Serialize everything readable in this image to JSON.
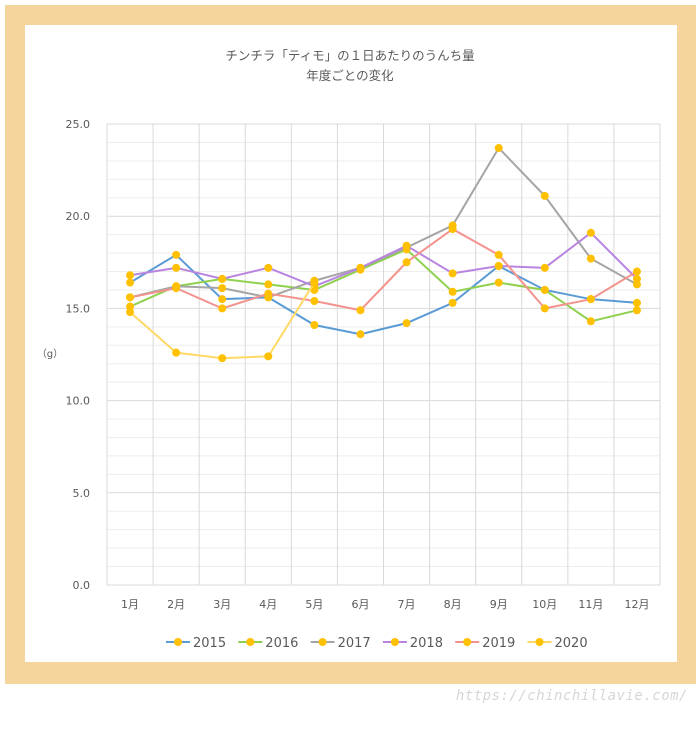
{
  "chart_data": {
    "type": "line",
    "title": "チンチラ「ティモ」の１日あたりのうんち量",
    "subtitle": "年度ごとの変化",
    "ylabel": "（g）",
    "xlabel": "",
    "categories": [
      "1月",
      "2月",
      "3月",
      "4月",
      "5月",
      "6月",
      "7月",
      "8月",
      "9月",
      "10月",
      "11月",
      "12月"
    ],
    "ylim": [
      0,
      25
    ],
    "yticks": [
      "0.0",
      "5.0",
      "10.0",
      "15.0",
      "20.0",
      "25.0"
    ],
    "grid": true,
    "legend": "bottom",
    "marker_color": "#ffc000",
    "series": [
      {
        "name": "2015",
        "color": "#5b9bd5",
        "values": [
          16.4,
          17.9,
          15.5,
          15.6,
          14.1,
          13.6,
          14.2,
          15.3,
          17.3,
          16.0,
          15.5,
          15.3
        ]
      },
      {
        "name": "2016",
        "color": "#8fd14f",
        "values": [
          15.1,
          16.2,
          16.6,
          16.3,
          16.0,
          17.1,
          18.2,
          15.9,
          16.4,
          16.0,
          14.3,
          14.9
        ]
      },
      {
        "name": "2017",
        "color": "#a5a5a5",
        "values": [
          15.6,
          16.2,
          16.1,
          15.6,
          16.5,
          17.2,
          18.3,
          19.5,
          23.7,
          21.1,
          17.7,
          16.3
        ]
      },
      {
        "name": "2018",
        "color": "#b884e0",
        "values": [
          16.8,
          17.2,
          16.6,
          17.2,
          16.2,
          17.2,
          18.4,
          16.9,
          17.3,
          17.2,
          19.1,
          16.6
        ]
      },
      {
        "name": "2019",
        "color": "#f4938e",
        "values": [
          15.6,
          16.1,
          15.0,
          15.8,
          15.4,
          14.9,
          17.5,
          19.3,
          17.9,
          15.0,
          15.5,
          17.0
        ]
      },
      {
        "name": "2020",
        "color": "#ffd966",
        "values": [
          14.8,
          12.6,
          12.3,
          12.4,
          16.4,
          null,
          null,
          null,
          null,
          null,
          null,
          null
        ]
      }
    ]
  },
  "watermark": "https://chinchillavie.com/",
  "colors": {
    "frame": "#f5d59c"
  }
}
